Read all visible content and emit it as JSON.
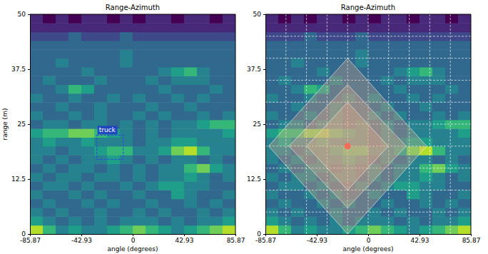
{
  "chart_data": [
    {
      "type": "heatmap",
      "title": "Range-Azimuth",
      "xlabel": "angle (degrees)",
      "ylabel": "range (m)",
      "xlim": [
        -85.87,
        85.87
      ],
      "xticks": [
        -85.87,
        -42.93,
        0,
        42.93,
        85.87
      ],
      "ylim": [
        0,
        50
      ],
      "yticks": [
        0,
        12.5,
        25,
        37.5,
        50
      ],
      "zlim": [
        0,
        9
      ],
      "x_edges": [
        -85.87,
        -75.14,
        -64.4,
        -53.67,
        -42.93,
        -32.2,
        -21.47,
        -10.73,
        0,
        10.73,
        21.47,
        32.2,
        42.93,
        53.67,
        64.4,
        75.14,
        85.87
      ],
      "y_edges": [
        0,
        2,
        4,
        6,
        8,
        10,
        12,
        14,
        16,
        18,
        20,
        22,
        24,
        26,
        28,
        30,
        32,
        34,
        36,
        38,
        40,
        42,
        44,
        46,
        48,
        50
      ],
      "cells": [
        [
          8,
          6,
          4,
          5,
          4,
          4,
          5,
          6,
          7,
          6,
          5,
          4,
          5,
          6,
          7,
          8
        ],
        [
          5,
          4,
          3,
          4,
          3,
          4,
          3,
          4,
          4,
          4,
          3,
          4,
          3,
          4,
          4,
          5
        ],
        [
          4,
          3,
          4,
          3,
          3,
          4,
          3,
          3,
          4,
          3,
          4,
          3,
          3,
          4,
          3,
          4
        ],
        [
          3,
          4,
          3,
          3,
          4,
          3,
          4,
          3,
          3,
          4,
          3,
          3,
          4,
          3,
          4,
          3
        ],
        [
          4,
          3,
          3,
          4,
          3,
          4,
          3,
          3,
          4,
          3,
          3,
          5,
          4,
          3,
          3,
          4
        ],
        [
          3,
          4,
          4,
          3,
          4,
          3,
          3,
          4,
          3,
          4,
          5,
          5,
          4,
          4,
          3,
          3
        ],
        [
          4,
          3,
          4,
          4,
          3,
          4,
          4,
          3,
          4,
          3,
          4,
          4,
          5,
          4,
          3,
          4
        ],
        [
          3,
          4,
          3,
          4,
          4,
          3,
          4,
          3,
          4,
          3,
          4,
          4,
          6,
          7,
          5,
          4
        ],
        [
          4,
          3,
          4,
          3,
          4,
          4,
          5,
          4,
          3,
          4,
          3,
          4,
          4,
          3,
          4,
          3
        ],
        [
          4,
          4,
          3,
          4,
          4,
          5,
          6,
          6,
          4,
          4,
          5,
          7,
          8,
          6,
          4,
          4
        ],
        [
          4,
          5,
          4,
          4,
          5,
          4,
          4,
          4,
          3,
          4,
          4,
          5,
          5,
          4,
          4,
          4
        ],
        [
          5,
          6,
          6,
          7,
          7,
          6,
          5,
          4,
          3,
          4,
          3,
          4,
          4,
          4,
          4,
          5
        ],
        [
          3,
          4,
          4,
          3,
          4,
          4,
          3,
          4,
          3,
          4,
          3,
          4,
          4,
          5,
          6,
          6
        ],
        [
          4,
          3,
          3,
          4,
          3,
          4,
          3,
          3,
          4,
          3,
          4,
          3,
          3,
          4,
          3,
          4
        ],
        [
          3,
          3,
          4,
          3,
          3,
          4,
          3,
          3,
          3,
          4,
          3,
          3,
          4,
          3,
          3,
          3
        ],
        [
          4,
          3,
          3,
          4,
          3,
          3,
          4,
          3,
          4,
          3,
          3,
          4,
          3,
          4,
          3,
          3
        ],
        [
          3,
          3,
          4,
          6,
          5,
          3,
          3,
          3,
          3,
          3,
          4,
          3,
          3,
          3,
          4,
          3
        ],
        [
          3,
          4,
          3,
          3,
          3,
          4,
          3,
          3,
          3,
          4,
          3,
          4,
          4,
          4,
          3,
          3
        ],
        [
          3,
          3,
          3,
          3,
          4,
          3,
          3,
          3,
          3,
          3,
          4,
          5,
          6,
          4,
          3,
          3
        ],
        [
          3,
          3,
          4,
          3,
          3,
          3,
          3,
          4,
          3,
          3,
          3,
          3,
          3,
          3,
          3,
          3
        ],
        [
          3,
          3,
          3,
          3,
          3,
          3,
          3,
          4,
          3,
          3,
          3,
          3,
          3,
          3,
          3,
          3
        ],
        [
          3,
          3,
          3,
          3,
          3,
          3,
          3,
          3,
          3,
          3,
          3,
          3,
          3,
          3,
          3,
          3
        ],
        [
          2,
          2,
          2,
          3,
          2,
          2,
          2,
          3,
          2,
          2,
          2,
          2,
          2,
          2,
          2,
          2
        ],
        [
          1,
          1,
          1,
          1,
          1,
          1,
          1,
          1,
          1,
          1,
          1,
          1,
          1,
          1,
          1,
          1
        ],
        [
          1,
          0,
          1,
          0,
          1,
          1,
          0,
          1,
          0,
          1,
          1,
          0,
          1,
          1,
          0,
          1
        ]
      ],
      "boxes": [
        {
          "label": "truck",
          "x": [
            -30,
            -8
          ],
          "y": [
            17,
            22.5
          ]
        }
      ]
    },
    {
      "type": "heatmap",
      "title": "Range-Azimuth",
      "xlabel": "angle (degrees)",
      "xlim": [
        -85.87,
        85.87
      ],
      "xticks": [
        -85.87,
        -42.93,
        0,
        42.93,
        85.87
      ],
      "ylim": [
        0,
        50
      ],
      "yticks": [
        0,
        12.5,
        25,
        37.5,
        50
      ],
      "zlim": [
        0,
        9
      ],
      "x_edges": [
        -85.87,
        -75.14,
        -64.4,
        -53.67,
        -42.93,
        -32.2,
        -21.47,
        -10.73,
        0,
        10.73,
        21.47,
        32.2,
        42.93,
        53.67,
        64.4,
        75.14,
        85.87
      ],
      "y_edges": [
        0,
        2,
        4,
        6,
        8,
        10,
        12,
        14,
        16,
        18,
        20,
        22,
        24,
        26,
        28,
        30,
        32,
        34,
        36,
        38,
        40,
        42,
        44,
        46,
        48,
        50
      ],
      "cells": [
        [
          8,
          6,
          4,
          5,
          4,
          4,
          5,
          6,
          7,
          6,
          5,
          4,
          5,
          6,
          7,
          8
        ],
        [
          5,
          4,
          3,
          4,
          3,
          4,
          3,
          4,
          4,
          4,
          3,
          4,
          3,
          4,
          4,
          5
        ],
        [
          4,
          3,
          4,
          3,
          3,
          4,
          3,
          3,
          4,
          3,
          4,
          3,
          3,
          4,
          3,
          4
        ],
        [
          3,
          4,
          3,
          3,
          4,
          3,
          4,
          3,
          3,
          4,
          3,
          3,
          4,
          3,
          4,
          3
        ],
        [
          4,
          3,
          3,
          4,
          3,
          4,
          3,
          3,
          4,
          3,
          3,
          5,
          4,
          3,
          3,
          4
        ],
        [
          3,
          4,
          4,
          3,
          4,
          3,
          3,
          4,
          3,
          4,
          5,
          5,
          4,
          4,
          3,
          3
        ],
        [
          4,
          3,
          4,
          4,
          3,
          4,
          4,
          3,
          4,
          3,
          4,
          4,
          5,
          4,
          3,
          4
        ],
        [
          3,
          4,
          3,
          4,
          4,
          3,
          4,
          3,
          4,
          3,
          4,
          4,
          6,
          7,
          5,
          4
        ],
        [
          4,
          3,
          4,
          3,
          4,
          4,
          5,
          4,
          3,
          4,
          3,
          4,
          4,
          3,
          4,
          3
        ],
        [
          4,
          4,
          3,
          4,
          4,
          5,
          6,
          6,
          4,
          4,
          5,
          7,
          8,
          6,
          4,
          4
        ],
        [
          4,
          5,
          4,
          4,
          5,
          4,
          4,
          4,
          3,
          4,
          4,
          5,
          5,
          4,
          4,
          4
        ],
        [
          5,
          6,
          6,
          7,
          7,
          6,
          5,
          4,
          3,
          4,
          3,
          4,
          4,
          4,
          4,
          5
        ],
        [
          3,
          4,
          4,
          3,
          4,
          4,
          3,
          4,
          3,
          4,
          3,
          4,
          4,
          5,
          6,
          6
        ],
        [
          4,
          3,
          3,
          4,
          3,
          4,
          3,
          3,
          4,
          3,
          4,
          3,
          3,
          4,
          3,
          4
        ],
        [
          3,
          3,
          4,
          3,
          3,
          4,
          3,
          3,
          3,
          4,
          3,
          3,
          4,
          3,
          3,
          3
        ],
        [
          4,
          3,
          3,
          4,
          3,
          3,
          4,
          3,
          4,
          3,
          3,
          4,
          3,
          4,
          3,
          3
        ],
        [
          3,
          3,
          4,
          6,
          5,
          3,
          3,
          3,
          3,
          3,
          4,
          3,
          3,
          3,
          4,
          3
        ],
        [
          3,
          4,
          3,
          3,
          3,
          4,
          3,
          3,
          3,
          4,
          3,
          4,
          4,
          4,
          3,
          3
        ],
        [
          3,
          3,
          3,
          3,
          4,
          3,
          3,
          3,
          3,
          3,
          4,
          5,
          6,
          4,
          3,
          3
        ],
        [
          3,
          3,
          4,
          3,
          3,
          3,
          3,
          4,
          3,
          3,
          3,
          3,
          3,
          3,
          3,
          3
        ],
        [
          3,
          3,
          3,
          3,
          3,
          3,
          3,
          4,
          3,
          3,
          3,
          3,
          3,
          3,
          3,
          3
        ],
        [
          3,
          3,
          3,
          3,
          3,
          3,
          3,
          3,
          3,
          3,
          3,
          3,
          3,
          3,
          3,
          3
        ],
        [
          2,
          2,
          2,
          3,
          2,
          2,
          2,
          3,
          2,
          2,
          2,
          2,
          2,
          2,
          2,
          2
        ],
        [
          1,
          1,
          1,
          1,
          1,
          1,
          1,
          1,
          1,
          1,
          1,
          1,
          1,
          1,
          1,
          1
        ],
        [
          1,
          0,
          1,
          0,
          1,
          1,
          0,
          1,
          0,
          1,
          1,
          0,
          1,
          1,
          0,
          1
        ]
      ],
      "grid_lines": {
        "x": [
          -68.7,
          -51.52,
          -34.35,
          -17.17,
          0,
          17.17,
          34.35,
          51.52,
          68.7
        ],
        "y": [
          5,
          10,
          15,
          20,
          25,
          30,
          35,
          40,
          45
        ]
      },
      "diamonds": [
        {
          "angle_half": 66,
          "range_half": 20
        },
        {
          "angle_half": 49,
          "range_half": 14
        },
        {
          "angle_half": 34,
          "range_half": 10
        }
      ],
      "center": {
        "angle": -17.2,
        "range": 20
      }
    }
  ]
}
